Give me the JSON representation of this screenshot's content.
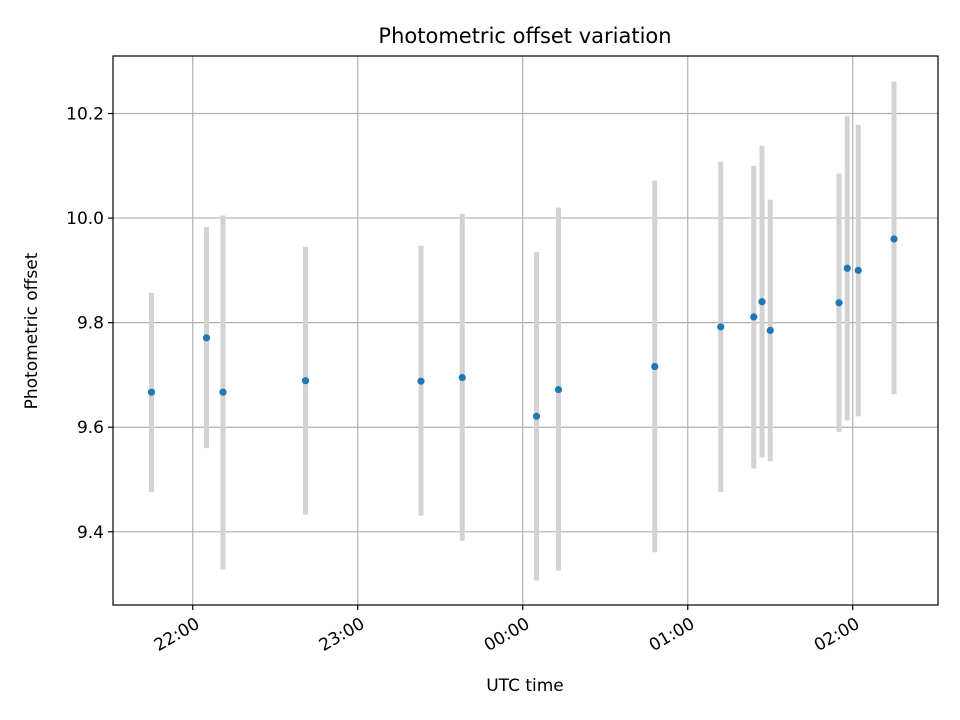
{
  "chart_data": {
    "type": "scatter",
    "title": "Photometric offset variation",
    "xlabel": "UTC time",
    "ylabel": "Photometric offset",
    "x_ticks": [
      "22:00",
      "23:00",
      "00:00",
      "01:00",
      "02:00"
    ],
    "y_ticks": [
      9.4,
      9.6,
      9.8,
      10.0,
      10.2
    ],
    "xlim": [
      "21:31",
      "02:31"
    ],
    "ylim": [
      9.26,
      10.31
    ],
    "grid": true,
    "legend": "none",
    "colors": {
      "point": "#1f77b4",
      "errorbar": "#d3d3d3",
      "grid": "#b0b0b0"
    },
    "points": [
      {
        "x": "21:45",
        "y": 9.667,
        "err_low": 9.476,
        "err_high": 9.857
      },
      {
        "x": "22:05",
        "y": 9.771,
        "err_low": 9.56,
        "err_high": 9.983
      },
      {
        "x": "22:11",
        "y": 9.667,
        "err_low": 9.328,
        "err_high": 10.005
      },
      {
        "x": "22:41",
        "y": 9.689,
        "err_low": 9.433,
        "err_high": 9.945
      },
      {
        "x": "23:23",
        "y": 9.688,
        "err_low": 9.431,
        "err_high": 9.947
      },
      {
        "x": "23:38",
        "y": 9.695,
        "err_low": 9.383,
        "err_high": 10.008
      },
      {
        "x": "00:05",
        "y": 9.621,
        "err_low": 9.307,
        "err_high": 9.935
      },
      {
        "x": "00:13",
        "y": 9.672,
        "err_low": 9.326,
        "err_high": 10.02
      },
      {
        "x": "00:48",
        "y": 9.716,
        "err_low": 9.361,
        "err_high": 10.072
      },
      {
        "x": "01:12",
        "y": 9.792,
        "err_low": 9.476,
        "err_high": 10.108
      },
      {
        "x": "01:24",
        "y": 9.811,
        "err_low": 9.521,
        "err_high": 10.1
      },
      {
        "x": "01:27",
        "y": 9.84,
        "err_low": 9.542,
        "err_high": 10.138
      },
      {
        "x": "01:30",
        "y": 9.785,
        "err_low": 9.535,
        "err_high": 10.035
      },
      {
        "x": "01:55",
        "y": 9.838,
        "err_low": 9.591,
        "err_high": 10.085
      },
      {
        "x": "01:58",
        "y": 9.904,
        "err_low": 9.613,
        "err_high": 10.195
      },
      {
        "x": "02:02",
        "y": 9.9,
        "err_low": 9.621,
        "err_high": 10.178
      },
      {
        "x": "02:15",
        "y": 9.96,
        "err_low": 9.663,
        "err_high": 10.261
      }
    ]
  }
}
